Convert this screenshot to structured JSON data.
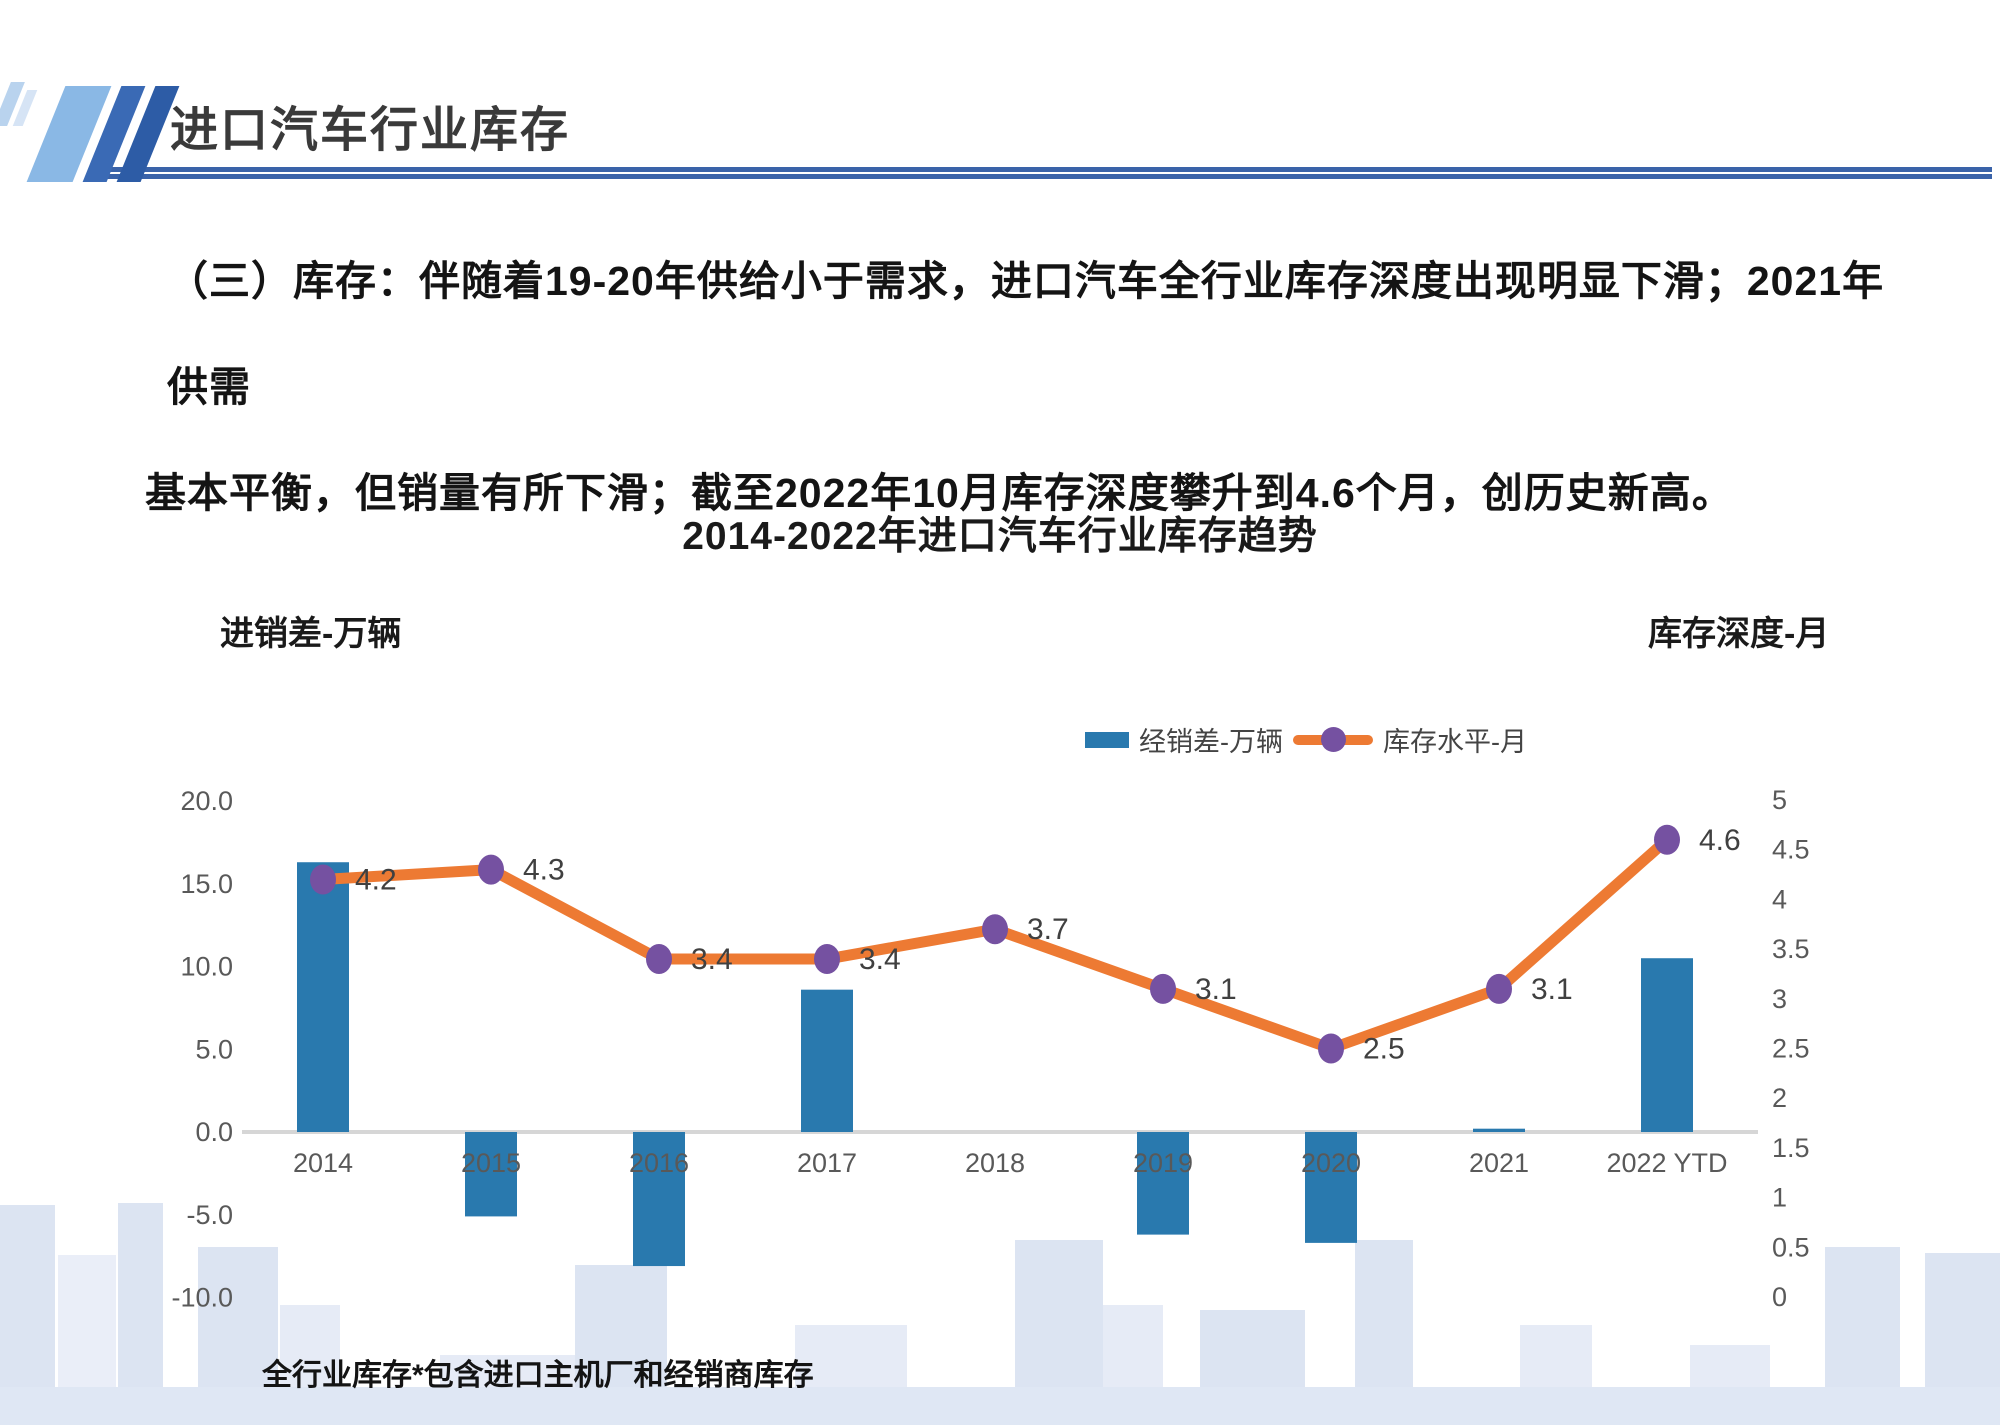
{
  "header": {
    "title": "进口汽车行业库存"
  },
  "paragraph": {
    "line1": "（三）库存：伴随着19-20年供给小于需求，进口汽车全行业库存深度出现明显下滑；2021年供需",
    "line2": "基本平衡，但销量有所下滑；截至2022年10月库存深度攀升到4.6个月，创历史新高。"
  },
  "footer": {
    "note": "全行业库存*包含进口主机厂和经销商库存"
  },
  "chart_data": {
    "type": "combo-bar-line",
    "title": "2014-2022年进口汽车行业库存趋势",
    "categories": [
      "2014",
      "2015",
      "2016",
      "2017",
      "2018",
      "2019",
      "2020",
      "2021",
      "2022 YTD"
    ],
    "series": [
      {
        "name": "经销差-万辆",
        "type": "bar",
        "axis": "left",
        "color": "#2979ae",
        "values": [
          16.3,
          -5.1,
          -8.1,
          8.6,
          0,
          -6.2,
          -6.7,
          0.2,
          10.5
        ]
      },
      {
        "name": "库存水平-月",
        "type": "line",
        "axis": "right",
        "color": "#ed7a33",
        "marker_color": "#7551a1",
        "values": [
          4.2,
          4.3,
          3.4,
          3.4,
          3.7,
          3.1,
          2.5,
          3.1,
          4.6
        ],
        "labels": [
          "4.2",
          "4.3",
          "3.4",
          "3.4",
          "3.7",
          "3.1",
          "2.5",
          "3.1",
          "4.6"
        ]
      }
    ],
    "left_axis": {
      "label": "进销差-万辆",
      "min": -10,
      "max": 20,
      "step": 5,
      "ticks": [
        "20.0",
        "15.0",
        "10.0",
        "5.0",
        "0.0",
        "-5.0",
        "-10.0"
      ],
      "tick_values": [
        20,
        15,
        10,
        5,
        0,
        -5,
        -10
      ]
    },
    "right_axis": {
      "label": "库存深度-月",
      "min": 0,
      "max": 5,
      "step": 0.5,
      "ticks": [
        "5",
        "4.5",
        "4",
        "3.5",
        "3",
        "2.5",
        "2",
        "1.5",
        "1",
        "0.5",
        "0"
      ],
      "tick_values": [
        5,
        4.5,
        4,
        3.5,
        3,
        2.5,
        2,
        1.5,
        1,
        0.5,
        0
      ]
    },
    "legend": {
      "position": "top-right",
      "items": [
        "经销差-万辆",
        "库存水平-月"
      ]
    },
    "grid": "off",
    "colors": {
      "bar": "#2979ae",
      "line": "#ed7a33",
      "marker": "#7551a1",
      "axis_text": "#595959",
      "data_label": "#404040",
      "axis_line": "#d6d6d6"
    }
  }
}
